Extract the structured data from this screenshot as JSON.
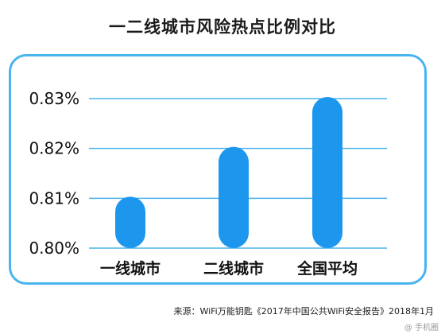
{
  "chart_data": {
    "type": "bar",
    "title": "一二线城市风险热点比例对比",
    "categories": [
      "一线城市",
      "二线城市",
      "全国平均"
    ],
    "values": [
      0.81,
      0.82,
      0.83
    ],
    "y_ticks": [
      "0.83%",
      "0.82%",
      "0.81%",
      "0.80%"
    ],
    "tick_values": [
      0.83,
      0.82,
      0.81,
      0.8
    ],
    "ylim": [
      0.8,
      0.83
    ],
    "unit": "%",
    "grid": true,
    "bar_color": "#1d97ee",
    "grid_color": "#4ab3ec"
  },
  "source": "来源：WiFi万能钥匙《2017年中国公共WiFi安全报告》2018年1月",
  "watermark": "@ 手机圈"
}
